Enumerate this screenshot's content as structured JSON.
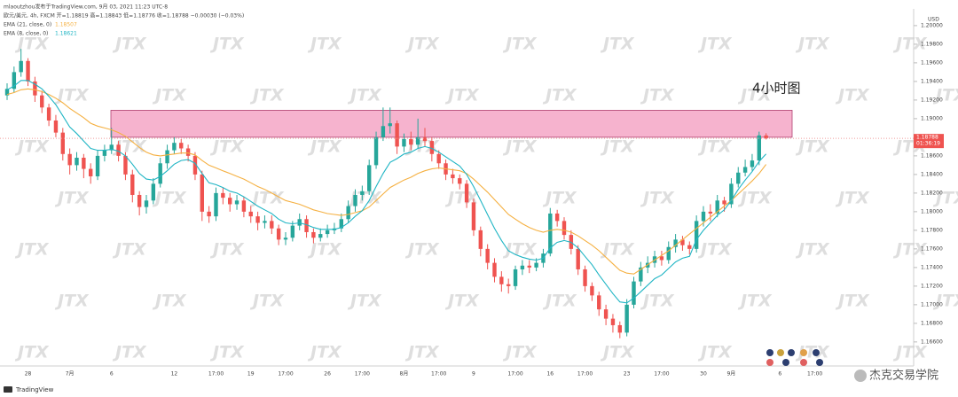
{
  "chart_data": {
    "type": "candlestick",
    "info_lines": [
      "mlaoutzhou发布于TradingView.com, 9月 03, 2021 11:23 UTC-8",
      "欧元/美元, 4h, FXCM  开=1.18819 高=1.18843 低=1.18776 收=1.18788 −0.00030 (−0.03%)"
    ],
    "annotation": "4小时图",
    "currency": "USD",
    "watermark": "JTX",
    "branding": "TradingView",
    "footer_mark": "杰克交易学院",
    "ylim": [
      1.1637,
      1.2018
    ],
    "yticks": [
      {
        "value": 1.2,
        "label": "1.20000"
      },
      {
        "value": 1.198,
        "label": "1.19800"
      },
      {
        "value": 1.196,
        "label": "1.19600"
      },
      {
        "value": 1.194,
        "label": "1.19400"
      },
      {
        "value": 1.192,
        "label": "1.19200"
      },
      {
        "value": 1.19,
        "label": "1.19000"
      },
      {
        "value": 1.186,
        "label": "1.18600"
      },
      {
        "value": 1.184,
        "label": "1.18400"
      },
      {
        "value": 1.182,
        "label": "1.18200"
      },
      {
        "value": 1.18,
        "label": "1.18000"
      },
      {
        "value": 1.178,
        "label": "1.17800"
      },
      {
        "value": 1.176,
        "label": "1.17600"
      },
      {
        "value": 1.174,
        "label": "1.17400"
      },
      {
        "value": 1.172,
        "label": "1.17200"
      },
      {
        "value": 1.17,
        "label": "1.17000"
      },
      {
        "value": 1.168,
        "label": "1.16800"
      },
      {
        "value": 1.166,
        "label": "1.16600"
      }
    ],
    "last_price": {
      "value": 1.18788,
      "label": "1.18788"
    },
    "countdown": "01:36:19",
    "zone": [
      1.188,
      1.1909
    ],
    "zone_color": "#f4a6c6",
    "up_color": "#26a69a",
    "down_color": "#ef5350",
    "categories": [
      null,
      null,
      null,
      "28",
      null,
      null,
      null,
      null,
      null,
      "7月",
      null,
      null,
      null,
      null,
      null,
      "6",
      null,
      null,
      null,
      null,
      null,
      null,
      null,
      null,
      "12",
      null,
      null,
      null,
      null,
      null,
      "17:00",
      null,
      null,
      null,
      null,
      "19",
      null,
      null,
      null,
      null,
      "17:00",
      null,
      null,
      null,
      null,
      null,
      "26",
      null,
      null,
      null,
      null,
      "17:00",
      null,
      null,
      null,
      null,
      null,
      "8月",
      null,
      null,
      null,
      null,
      "17:00",
      null,
      null,
      null,
      null,
      "9",
      null,
      null,
      null,
      null,
      null,
      "17:00",
      null,
      null,
      null,
      null,
      "16",
      null,
      null,
      null,
      null,
      "17:00",
      null,
      null,
      null,
      null,
      null,
      "23",
      null,
      null,
      null,
      null,
      "17:00",
      null,
      null,
      null,
      null,
      null,
      "30",
      null,
      null,
      null,
      "9月",
      null,
      null,
      null,
      null,
      null,
      null,
      "6",
      null,
      null,
      null,
      null,
      "17:00",
      null,
      null,
      null,
      null,
      null,
      null,
      null,
      null,
      null,
      null,
      null,
      null,
      null
    ],
    "ohlc": [
      [
        1.1925,
        1.1938,
        1.192,
        1.1932
      ],
      [
        1.1932,
        1.1956,
        1.1928,
        1.195
      ],
      [
        1.195,
        1.1975,
        1.1945,
        1.1962
      ],
      [
        1.1962,
        1.1965,
        1.1935,
        1.194
      ],
      [
        1.194,
        1.1945,
        1.1918,
        1.1925
      ],
      [
        1.1925,
        1.193,
        1.1906,
        1.1912
      ],
      [
        1.1912,
        1.1916,
        1.1892,
        1.1898
      ],
      [
        1.1898,
        1.1904,
        1.188,
        1.1885
      ],
      [
        1.1885,
        1.189,
        1.1855,
        1.1862
      ],
      [
        1.1862,
        1.1868,
        1.184,
        1.185
      ],
      [
        1.185,
        1.1864,
        1.1844,
        1.1858
      ],
      [
        1.1858,
        1.1862,
        1.1836,
        1.1846
      ],
      [
        1.1846,
        1.1852,
        1.183,
        1.1838
      ],
      [
        1.1838,
        1.1866,
        1.1834,
        1.186
      ],
      [
        1.186,
        1.1872,
        1.1854,
        1.1866
      ],
      [
        1.1866,
        1.189,
        1.1862,
        1.1872
      ],
      [
        1.1872,
        1.1876,
        1.1854,
        1.186
      ],
      [
        1.186,
        1.1864,
        1.1834,
        1.184
      ],
      [
        1.184,
        1.1845,
        1.181,
        1.1818
      ],
      [
        1.1818,
        1.1822,
        1.1796,
        1.1805
      ],
      [
        1.1805,
        1.1818,
        1.1798,
        1.1812
      ],
      [
        1.1812,
        1.1836,
        1.1808,
        1.183
      ],
      [
        1.183,
        1.1858,
        1.1826,
        1.1852
      ],
      [
        1.1852,
        1.1872,
        1.1846,
        1.1866
      ],
      [
        1.1866,
        1.188,
        1.1862,
        1.1874
      ],
      [
        1.1874,
        1.1878,
        1.1862,
        1.1868
      ],
      [
        1.1868,
        1.1872,
        1.1854,
        1.186
      ],
      [
        1.186,
        1.1864,
        1.1834,
        1.184
      ],
      [
        1.184,
        1.1844,
        1.179,
        1.18
      ],
      [
        1.18,
        1.1806,
        1.1788,
        1.1795
      ],
      [
        1.1795,
        1.1826,
        1.179,
        1.182
      ],
      [
        1.182,
        1.1826,
        1.1808,
        1.1815
      ],
      [
        1.1815,
        1.182,
        1.18,
        1.1808
      ],
      [
        1.1808,
        1.1818,
        1.1802,
        1.1812
      ],
      [
        1.1812,
        1.1816,
        1.1794,
        1.18
      ],
      [
        1.18,
        1.1806,
        1.1788,
        1.1795
      ],
      [
        1.1795,
        1.18,
        1.178,
        1.1788
      ],
      [
        1.1788,
        1.1796,
        1.1782,
        1.179
      ],
      [
        1.179,
        1.1796,
        1.1776,
        1.1782
      ],
      [
        1.1782,
        1.1786,
        1.1764,
        1.177
      ],
      [
        1.177,
        1.1778,
        1.1764,
        1.1772
      ],
      [
        1.1772,
        1.179,
        1.1768,
        1.1785
      ],
      [
        1.1785,
        1.1798,
        1.178,
        1.1792
      ],
      [
        1.1792,
        1.1796,
        1.1772,
        1.1778
      ],
      [
        1.1778,
        1.1782,
        1.1766,
        1.1772
      ],
      [
        1.1772,
        1.1782,
        1.1768,
        1.1776
      ],
      [
        1.1776,
        1.1786,
        1.1772,
        1.178
      ],
      [
        1.178,
        1.1788,
        1.1776,
        1.1782
      ],
      [
        1.1782,
        1.1798,
        1.1778,
        1.1792
      ],
      [
        1.1792,
        1.1812,
        1.1788,
        1.1806
      ],
      [
        1.1806,
        1.1824,
        1.18,
        1.1818
      ],
      [
        1.1818,
        1.1828,
        1.1812,
        1.1822
      ],
      [
        1.1822,
        1.1856,
        1.1818,
        1.185
      ],
      [
        1.185,
        1.1886,
        1.1846,
        1.188
      ],
      [
        1.188,
        1.1912,
        1.1876,
        1.1892
      ],
      [
        1.1892,
        1.1912,
        1.1884,
        1.1895
      ],
      [
        1.1895,
        1.1898,
        1.1862,
        1.187
      ],
      [
        1.187,
        1.1884,
        1.1864,
        1.1878
      ],
      [
        1.1878,
        1.1886,
        1.1866,
        1.1872
      ],
      [
        1.1872,
        1.19,
        1.1868,
        1.188
      ],
      [
        1.188,
        1.189,
        1.187,
        1.1876
      ],
      [
        1.1876,
        1.188,
        1.1854,
        1.1862
      ],
      [
        1.1862,
        1.1866,
        1.1846,
        1.1852
      ],
      [
        1.1852,
        1.1856,
        1.1834,
        1.184
      ],
      [
        1.184,
        1.1846,
        1.183,
        1.1836
      ],
      [
        1.1836,
        1.184,
        1.1824,
        1.183
      ],
      [
        1.183,
        1.1834,
        1.1804,
        1.181
      ],
      [
        1.181,
        1.1814,
        1.1774,
        1.178
      ],
      [
        1.178,
        1.1784,
        1.1752,
        1.176
      ],
      [
        1.176,
        1.1765,
        1.1738,
        1.1745
      ],
      [
        1.1745,
        1.175,
        1.1724,
        1.173
      ],
      [
        1.173,
        1.1736,
        1.1714,
        1.1722
      ],
      [
        1.1722,
        1.1728,
        1.1712,
        1.172
      ],
      [
        1.172,
        1.1742,
        1.1716,
        1.1738
      ],
      [
        1.1738,
        1.1748,
        1.1732,
        1.1742
      ],
      [
        1.1742,
        1.1748,
        1.1734,
        1.174
      ],
      [
        1.174,
        1.175,
        1.1736,
        1.1745
      ],
      [
        1.1745,
        1.176,
        1.174,
        1.1755
      ],
      [
        1.1755,
        1.1804,
        1.1752,
        1.1798
      ],
      [
        1.1798,
        1.1802,
        1.1784,
        1.179
      ],
      [
        1.179,
        1.1794,
        1.177,
        1.1775
      ],
      [
        1.1775,
        1.178,
        1.1754,
        1.176
      ],
      [
        1.176,
        1.1764,
        1.1732,
        1.1738
      ],
      [
        1.1738,
        1.1742,
        1.1714,
        1.172
      ],
      [
        1.172,
        1.1724,
        1.1704,
        1.171
      ],
      [
        1.171,
        1.1714,
        1.1688,
        1.1695
      ],
      [
        1.1695,
        1.17,
        1.1678,
        1.1685
      ],
      [
        1.1685,
        1.169,
        1.167,
        1.1678
      ],
      [
        1.1678,
        1.1682,
        1.1664,
        1.167
      ],
      [
        1.167,
        1.1706,
        1.1666,
        1.17
      ],
      [
        1.17,
        1.173,
        1.1696,
        1.1725
      ],
      [
        1.1725,
        1.1746,
        1.172,
        1.174
      ],
      [
        1.174,
        1.1752,
        1.1734,
        1.1745
      ],
      [
        1.1745,
        1.1758,
        1.174,
        1.1752
      ],
      [
        1.1752,
        1.1758,
        1.1742,
        1.1748
      ],
      [
        1.1748,
        1.1768,
        1.1744,
        1.1762
      ],
      [
        1.1762,
        1.1776,
        1.1756,
        1.177
      ],
      [
        1.177,
        1.1774,
        1.1758,
        1.1764
      ],
      [
        1.1764,
        1.1768,
        1.1754,
        1.176
      ],
      [
        1.176,
        1.1796,
        1.1756,
        1.179
      ],
      [
        1.179,
        1.1806,
        1.1784,
        1.18
      ],
      [
        1.18,
        1.1808,
        1.179,
        1.1798
      ],
      [
        1.1798,
        1.1818,
        1.1794,
        1.1812
      ],
      [
        1.1812,
        1.1816,
        1.18,
        1.1808
      ],
      [
        1.1808,
        1.1836,
        1.1804,
        1.183
      ],
      [
        1.183,
        1.1848,
        1.1826,
        1.1842
      ],
      [
        1.1842,
        1.1856,
        1.1838,
        1.1848
      ],
      [
        1.1848,
        1.1862,
        1.1844,
        1.1855
      ],
      [
        1.1855,
        1.1886,
        1.185,
        1.1882
      ],
      [
        1.18819,
        1.18843,
        1.18776,
        1.18788
      ],
      null,
      null,
      null,
      null,
      null,
      null,
      null,
      null,
      null,
      null,
      null,
      null,
      null,
      null,
      null,
      null,
      null,
      null,
      null,
      null
    ],
    "series": [
      {
        "name": "EMA (21, close, 0)",
        "value_label": "1.18507",
        "color": "#f5b041",
        "values": [
          1.1926,
          1.1928,
          1.1931,
          1.1932,
          1.1931,
          1.1929,
          1.1926,
          1.1922,
          1.1917,
          1.1911,
          1.1906,
          1.1901,
          1.1895,
          1.1892,
          1.189,
          1.1888,
          1.1885,
          1.1881,
          1.1875,
          1.1869,
          1.1864,
          1.1861,
          1.186,
          1.1861,
          1.1862,
          1.1863,
          1.1863,
          1.1861,
          1.1855,
          1.185,
          1.1847,
          1.1844,
          1.1841,
          1.1838,
          1.1835,
          1.1831,
          1.1827,
          1.1824,
          1.182,
          1.1816,
          1.1812,
          1.181,
          1.1808,
          1.1805,
          1.1802,
          1.18,
          1.1798,
          1.1797,
          1.1796,
          1.1797,
          1.1799,
          1.1801,
          1.1805,
          1.1812,
          1.1819,
          1.1826,
          1.183,
          1.1834,
          1.1837,
          1.1841,
          1.1844,
          1.1846,
          1.1847,
          1.1846,
          1.1845,
          1.1844,
          1.1841,
          1.1835,
          1.1828,
          1.1821,
          1.1813,
          1.1805,
          1.1797,
          1.1792,
          1.1787,
          1.1783,
          1.178,
          1.1778,
          1.178,
          1.1781,
          1.178,
          1.1778,
          1.1774,
          1.1769,
          1.1764,
          1.1758,
          1.1751,
          1.1744,
          1.1737,
          1.1734,
          1.1733,
          1.1738,
          1.1743,
          1.1748,
          1.1753,
          1.1758,
          1.1764,
          1.177,
          1.1776,
          1.1782,
          1.1788,
          1.1794,
          1.18,
          1.1806,
          1.1812,
          1.1819,
          1.1826,
          1.1833,
          1.1841,
          1.18507,
          null,
          null,
          null,
          null,
          null,
          null,
          null,
          null,
          null,
          null,
          null,
          null,
          null,
          null,
          null,
          null,
          null,
          null,
          null,
          null
        ]
      },
      {
        "name": "EMA (8, close, 0)",
        "value_label": "1.18621",
        "color": "#1fb5c4",
        "values": [
          1.1931,
          1.1935,
          1.1941,
          1.1941,
          1.1937,
          1.1932,
          1.1924,
          1.1915,
          1.1903,
          1.1891,
          1.1884,
          1.1876,
          1.1868,
          1.1866,
          1.1866,
          1.1867,
          1.1865,
          1.186,
          1.1851,
          1.1841,
          1.1835,
          1.1834,
          1.1838,
          1.1844,
          1.1851,
          1.1855,
          1.1856,
          1.1852,
          1.1841,
          1.1831,
          1.1829,
          1.1826,
          1.1822,
          1.182,
          1.1816,
          1.1811,
          1.1806,
          1.1802,
          1.1798,
          1.1792,
          1.1788,
          1.1787,
          1.1788,
          1.1786,
          1.1783,
          1.1781,
          1.1781,
          1.1781,
          1.1783,
          1.1788,
          1.1795,
          1.1801,
          1.1812,
          1.1827,
          1.1841,
          1.1853,
          1.1857,
          1.1862,
          1.1864,
          1.1868,
          1.187,
          1.1868,
          1.1864,
          1.1859,
          1.1854,
          1.1849,
          1.184,
          1.1827,
          1.1812,
          1.1797,
          1.1782,
          1.1769,
          1.1758,
          1.1754,
          1.1751,
          1.1749,
          1.1748,
          1.175,
          1.1761,
          1.1767,
          1.1769,
          1.1767,
          1.1761,
          1.1752,
          1.1743,
          1.1732,
          1.1722,
          1.1712,
          1.1703,
          1.1702,
          1.1707,
          1.1714,
          1.1721,
          1.1728,
          1.1732,
          1.1739,
          1.1746,
          1.175,
          1.1752,
          1.177,
          1.178,
          1.1788,
          1.1796,
          1.1802,
          1.1812,
          1.1824,
          1.1834,
          1.1843,
          1.1854,
          1.18621,
          null,
          null,
          null,
          null,
          null,
          null,
          null,
          null,
          null,
          null,
          null,
          null,
          null,
          null,
          null,
          null,
          null,
          null,
          null,
          null
        ]
      }
    ]
  }
}
